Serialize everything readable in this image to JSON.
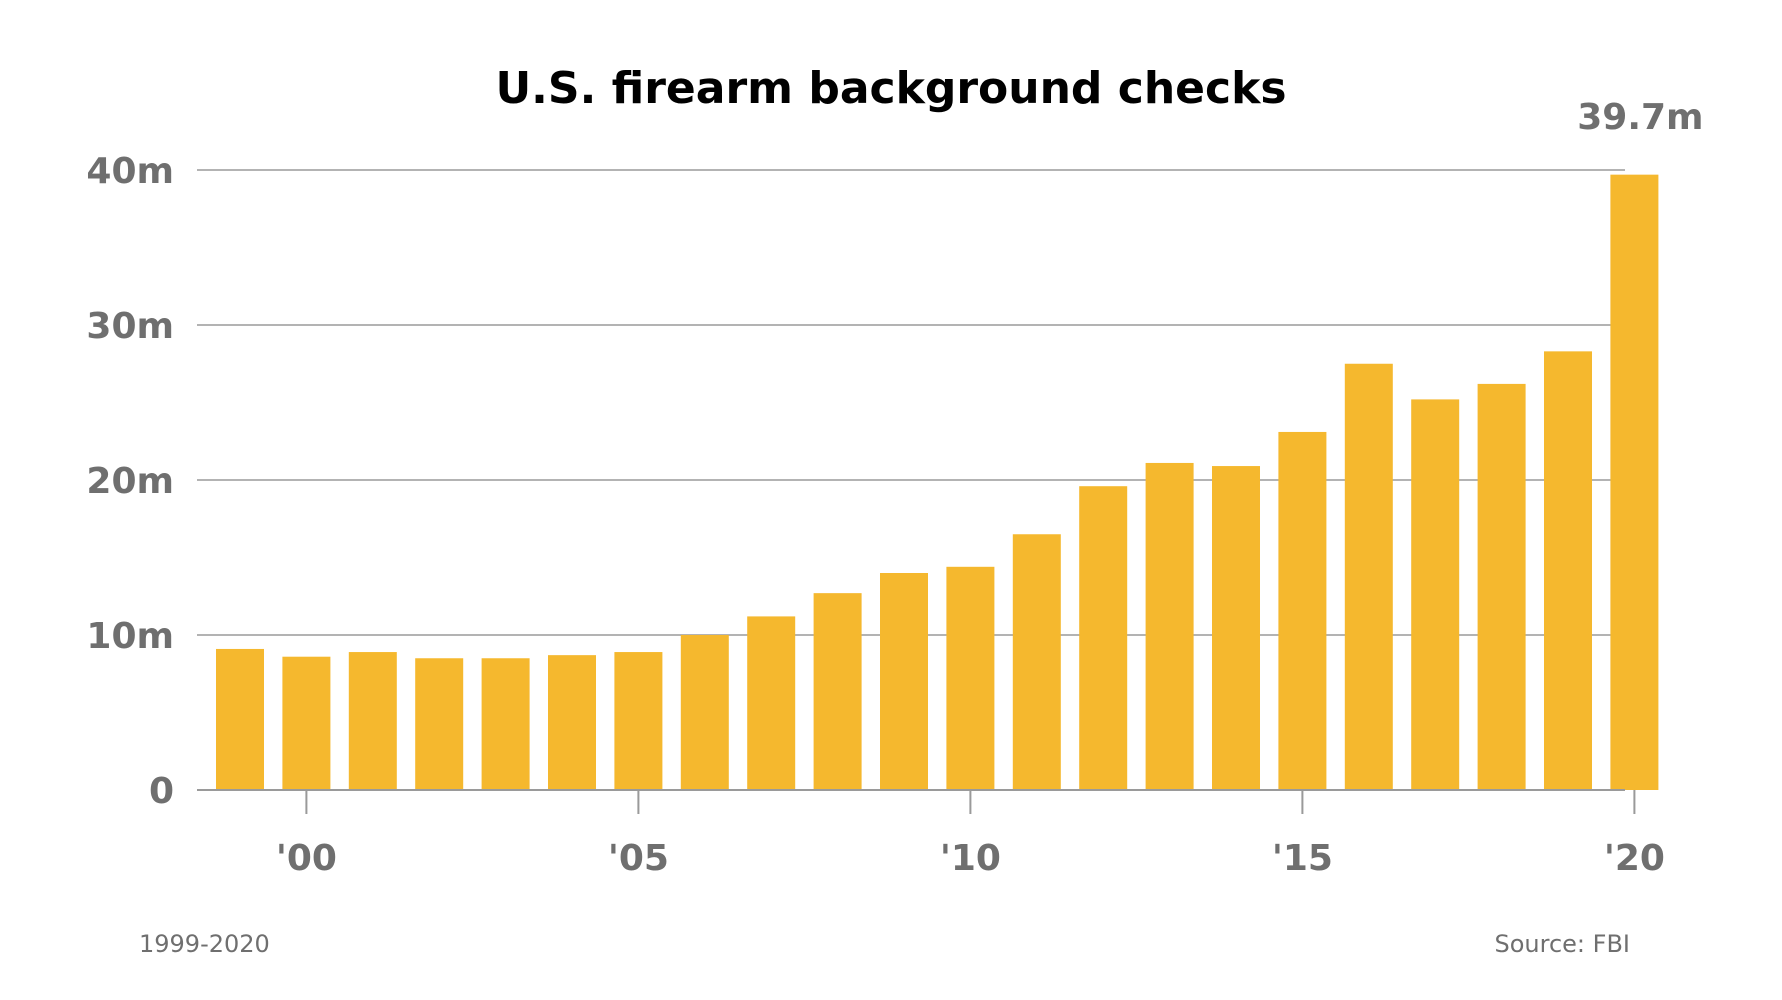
{
  "chart_data": {
    "type": "bar",
    "title": "U.S. firearm background checks",
    "xlabel": "",
    "ylabel": "",
    "x": [
      1999,
      2000,
      2001,
      2002,
      2003,
      2004,
      2005,
      2006,
      2007,
      2008,
      2009,
      2010,
      2011,
      2012,
      2013,
      2014,
      2015,
      2016,
      2017,
      2018,
      2019,
      2020
    ],
    "values": [
      9.1,
      8.6,
      8.9,
      8.5,
      8.5,
      8.7,
      8.9,
      10.0,
      11.2,
      12.7,
      14.0,
      14.4,
      16.5,
      19.6,
      21.1,
      20.9,
      23.1,
      27.5,
      25.2,
      26.2,
      28.3,
      39.7
    ],
    "ylim": [
      0,
      40
    ],
    "y_ticks": [
      {
        "value": 0,
        "label": "0"
      },
      {
        "value": 10,
        "label": "10m"
      },
      {
        "value": 20,
        "label": "20m"
      },
      {
        "value": 30,
        "label": "30m"
      },
      {
        "value": 40,
        "label": "40m"
      }
    ],
    "x_ticks": [
      {
        "value": 2000,
        "label": "'00"
      },
      {
        "value": 2005,
        "label": "'05"
      },
      {
        "value": 2010,
        "label": "'10"
      },
      {
        "value": 2015,
        "label": "'15"
      },
      {
        "value": 2020,
        "label": "'20"
      }
    ],
    "annotations": [
      {
        "x": 2020,
        "text": "39.7m"
      }
    ],
    "grid": true,
    "bar_color": "#f5b82e"
  },
  "footer": {
    "range_note": "1999-2020",
    "source": "Source: FBI"
  }
}
